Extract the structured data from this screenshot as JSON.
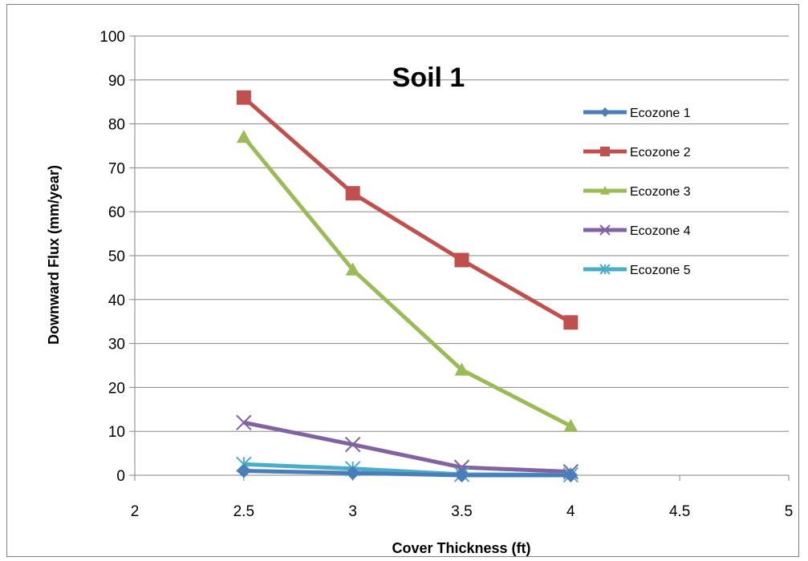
{
  "chart_data": {
    "type": "line",
    "title": "Soil 1",
    "xlabel": "Cover Thickness (ft)",
    "ylabel": "Downward Flux (mm/year)",
    "xlim": [
      2,
      5
    ],
    "ylim": [
      0,
      100
    ],
    "x_ticks": [
      "2",
      "2.5",
      "3",
      "3.5",
      "4",
      "4.5",
      "5"
    ],
    "y_ticks": [
      "0",
      "10",
      "20",
      "30",
      "40",
      "50",
      "60",
      "70",
      "80",
      "90",
      "100"
    ],
    "grid": "horizontal",
    "legend_position": "right",
    "x": [
      2.5,
      3,
      3.5,
      4
    ],
    "series": [
      {
        "name": "Ecozone 1",
        "values": [
          1.0,
          0.5,
          0.0,
          0.0
        ],
        "color": "#4a7ebb",
        "marker": "diamond"
      },
      {
        "name": "Ecozone 2",
        "values": [
          86,
          64.2,
          49,
          34.8
        ],
        "color": "#c0504d",
        "marker": "square"
      },
      {
        "name": "Ecozone 3",
        "values": [
          77,
          46.8,
          24,
          11.2
        ],
        "color": "#9bbb59",
        "marker": "triangle"
      },
      {
        "name": "Ecozone 4",
        "values": [
          12,
          7,
          1.8,
          0.8
        ],
        "color": "#8064a2",
        "marker": "x"
      },
      {
        "name": "Ecozone 5",
        "values": [
          2.5,
          1.5,
          0.2,
          0.1
        ],
        "color": "#4bacc6",
        "marker": "star"
      }
    ]
  }
}
